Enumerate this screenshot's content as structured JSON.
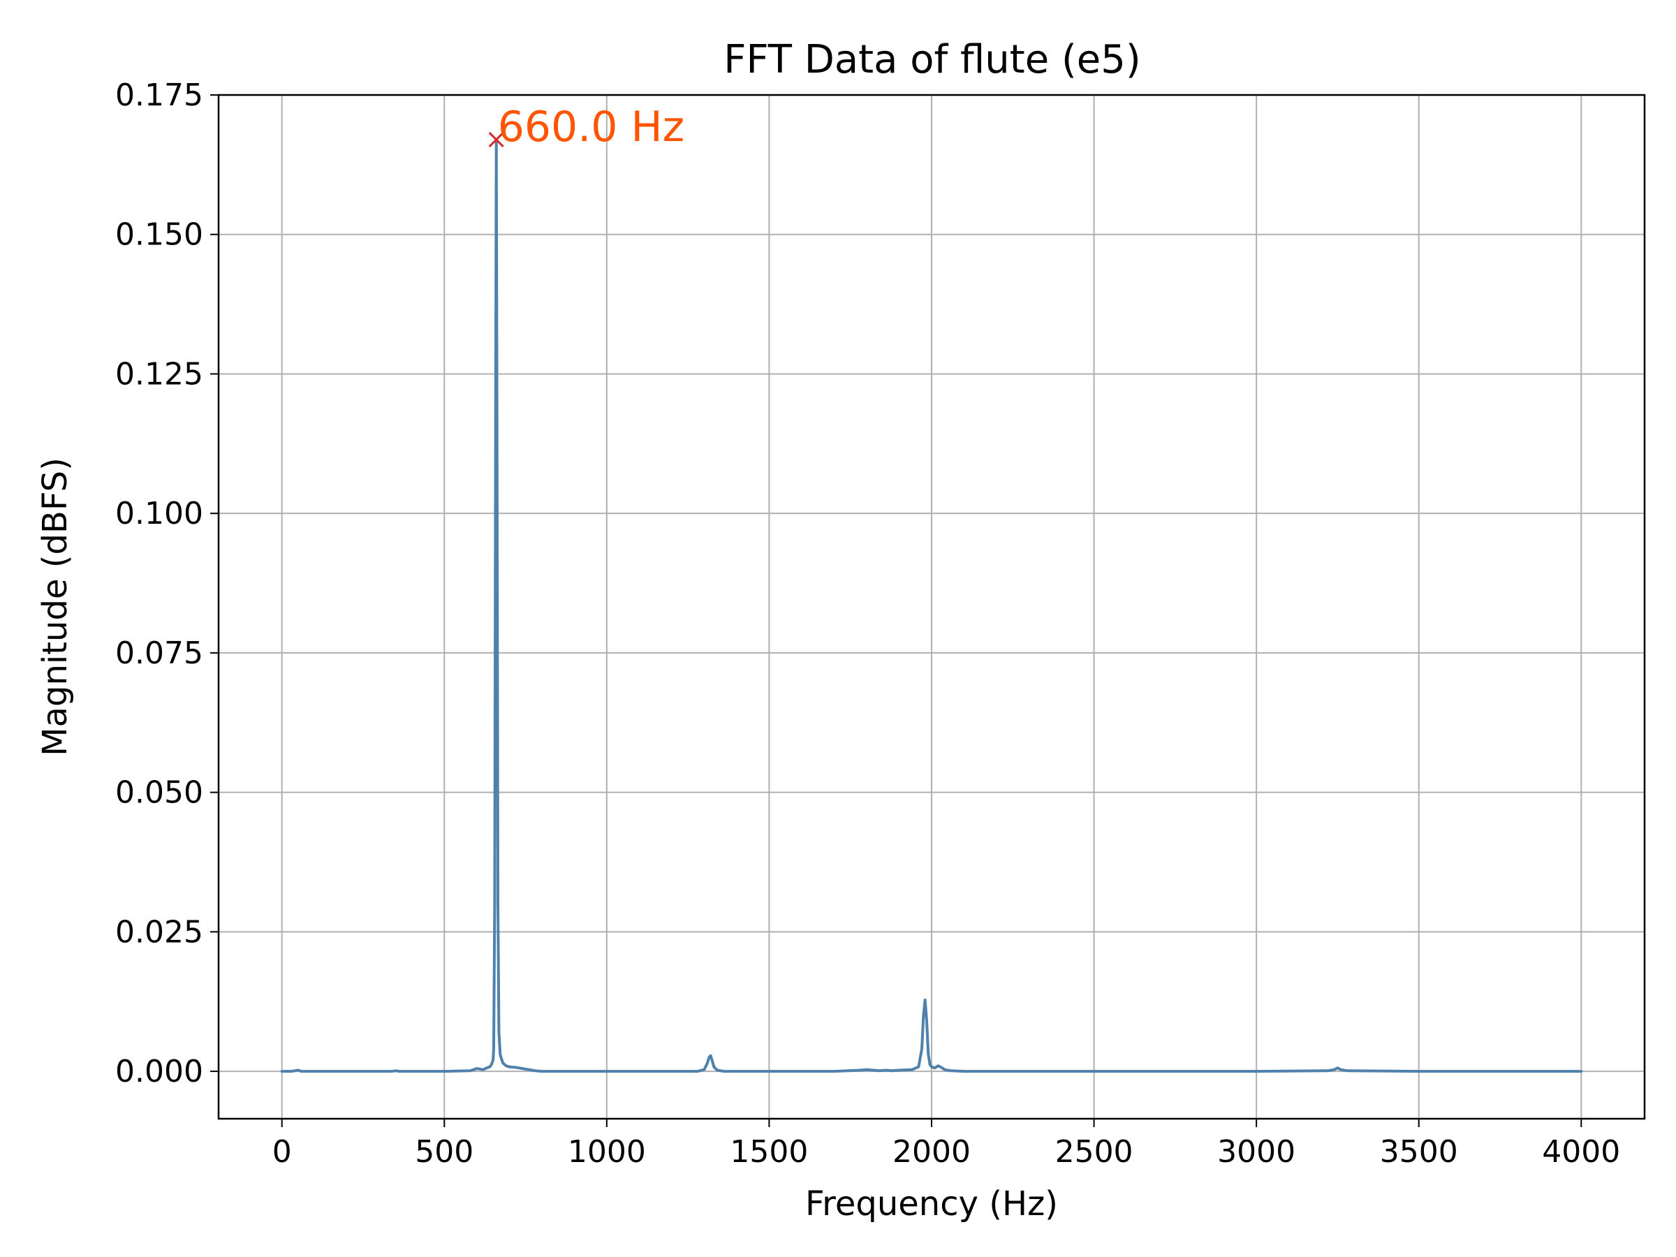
{
  "chart_data": {
    "type": "line",
    "title": "FFT Data of flute (e5)",
    "xlabel": "Frequency (Hz)",
    "ylabel": "Magnitude (dBFS)",
    "xlim": [
      -195,
      4195
    ],
    "ylim": [
      -0.0085,
      0.175
    ],
    "xticks": [
      0,
      500,
      1000,
      1500,
      2000,
      2500,
      3000,
      3500,
      4000
    ],
    "xtick_labels": [
      "0",
      "500",
      "1000",
      "1500",
      "2000",
      "2500",
      "3000",
      "3500",
      "4000"
    ],
    "yticks": [
      0.0,
      0.025,
      0.05,
      0.075,
      0.1,
      0.125,
      0.15,
      0.175
    ],
    "ytick_labels": [
      "0.000",
      "0.025",
      "0.050",
      "0.075",
      "0.100",
      "0.125",
      "0.150",
      "0.175"
    ],
    "grid": true,
    "series": [
      {
        "color": "#4f81ad",
        "x": [
          0,
          30,
          50,
          60,
          100,
          200,
          340,
          350,
          360,
          500,
          580,
          590,
          600,
          620,
          630,
          640,
          645,
          650,
          652,
          655,
          658,
          660,
          662,
          665,
          668,
          672,
          680,
          690,
          700,
          720,
          740,
          760,
          780,
          800,
          1000,
          1280,
          1300,
          1310,
          1315,
          1320,
          1325,
          1330,
          1340,
          1360,
          1500,
          1700,
          1780,
          1800,
          1820,
          1840,
          1860,
          1880,
          1900,
          1940,
          1960,
          1970,
          1975,
          1980,
          1985,
          1990,
          1995,
          2000,
          2010,
          2020,
          2030,
          2040,
          2060,
          2100,
          2500,
          3000,
          3220,
          3240,
          3250,
          3260,
          3280,
          3500,
          4000
        ],
        "y": [
          0.0,
          0.0,
          0.0002,
          0.0,
          0.0,
          0.0,
          0.0,
          0.0001,
          0.0,
          0.0,
          0.0001,
          0.0003,
          0.0005,
          0.0003,
          0.0006,
          0.0008,
          0.0012,
          0.002,
          0.004,
          0.03,
          0.12,
          0.167,
          0.12,
          0.03,
          0.007,
          0.003,
          0.0015,
          0.001,
          0.0008,
          0.0007,
          0.0005,
          0.0003,
          0.0001,
          0.0,
          0.0,
          0.0,
          0.0003,
          0.0015,
          0.0025,
          0.0028,
          0.0018,
          0.0008,
          0.0002,
          0.0,
          0.0,
          0.0,
          0.0002,
          0.0003,
          0.0002,
          0.0001,
          0.0002,
          0.0001,
          0.0002,
          0.0003,
          0.0008,
          0.004,
          0.01,
          0.0128,
          0.009,
          0.003,
          0.0012,
          0.0008,
          0.0006,
          0.001,
          0.0007,
          0.0003,
          0.0001,
          0.0,
          0.0,
          0.0,
          0.0001,
          0.0003,
          0.0006,
          0.0003,
          0.0001,
          0.0,
          0.0
        ]
      }
    ],
    "peak": {
      "x": 660,
      "y": 0.167,
      "label": "660.0 Hz",
      "marker_color": "#d62728",
      "label_color": "#ff5500"
    }
  }
}
